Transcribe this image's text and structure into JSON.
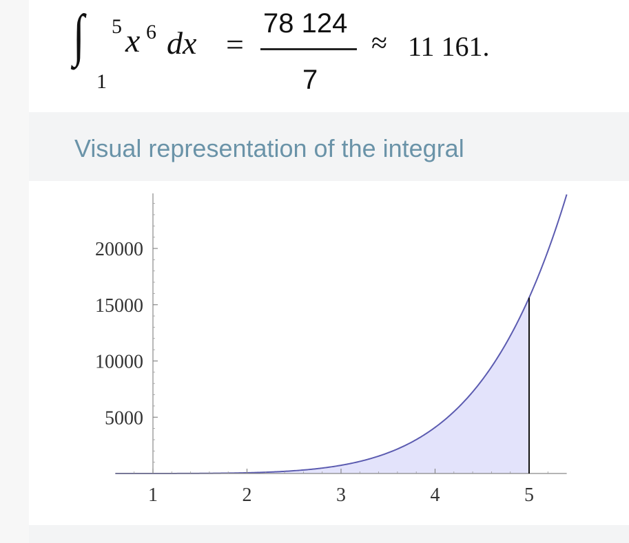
{
  "result": {
    "upper_limit": "5",
    "lower_limit": "1",
    "variable": "x",
    "exponent": "6",
    "differential": "dx",
    "equals": "=",
    "numerator": "78 124",
    "denominator": "7",
    "approx_symbol": "≈",
    "approx_value": "11 161."
  },
  "section": {
    "title": "Visual representation of the integral"
  },
  "chart_data": {
    "type": "area",
    "function": "x^6",
    "x_tick_labels": [
      "1",
      "2",
      "3",
      "4",
      "5"
    ],
    "y_tick_labels": [
      "5000",
      "10000",
      "15000",
      "20000"
    ],
    "xlim": [
      0.6,
      5.4
    ],
    "ylim": [
      0,
      25000
    ],
    "shaded_interval": [
      1,
      5
    ],
    "curve_color": "#5b5bb0",
    "fill_color": "#e3e3fb",
    "bound_line_color": "#111111",
    "grid": false
  }
}
